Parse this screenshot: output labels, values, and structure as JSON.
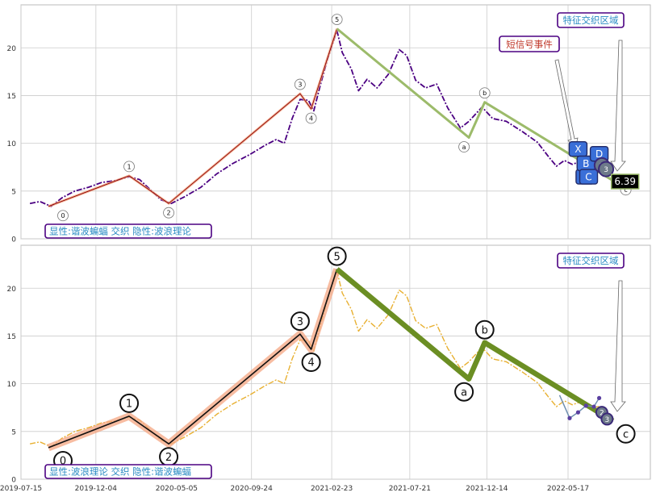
{
  "colors": {
    "price_top": "#4b0082",
    "price_bottom": "#e8b031",
    "wave_thin": "#8b0000",
    "wave_glow": "#f4a582",
    "abc_line": "#9cbb6a",
    "abc_thick": "#6b8e23",
    "label_box_border": "#4b0082",
    "label_text": "#2b8cc4",
    "event_text": "#c0392b",
    "marker_blue": "#3a6fd8",
    "grid": "#cccccc"
  },
  "chart_data": [
    {
      "type": "line",
      "panel": "top",
      "ylim": [
        0,
        24.5
      ],
      "yticks": [
        0,
        5,
        10,
        15,
        20
      ],
      "grid": true,
      "series": [
        {
          "key": "price",
          "style": "dash-dot",
          "points": [
            [
              "2019-08-01",
              3.7
            ],
            [
              "2019-08-20",
              3.9
            ],
            [
              "2019-09-10",
              3.4
            ],
            [
              "2019-10-01",
              4.3
            ],
            [
              "2019-10-25",
              5.0
            ],
            [
              "2019-11-20",
              5.4
            ],
            [
              "2019-12-15",
              5.9
            ],
            [
              "2020-01-10",
              6.1
            ],
            [
              "2020-02-05",
              6.5
            ],
            [
              "2020-02-25",
              6.2
            ],
            [
              "2020-03-15",
              5.2
            ],
            [
              "2020-04-05",
              4.1
            ],
            [
              "2020-04-25",
              3.7
            ],
            [
              "2020-05-20",
              4.4
            ],
            [
              "2020-06-20",
              5.4
            ],
            [
              "2020-07-20",
              6.8
            ],
            [
              "2020-08-20",
              7.9
            ],
            [
              "2020-09-20",
              8.8
            ],
            [
              "2020-10-20",
              9.8
            ],
            [
              "2020-11-10",
              10.4
            ],
            [
              "2020-11-25",
              10.0
            ],
            [
              "2020-12-10",
              12.6
            ],
            [
              "2020-12-25",
              14.6
            ],
            [
              "2021-01-10",
              14.5
            ],
            [
              "2021-01-20",
              13.4
            ],
            [
              "2021-02-01",
              16.0
            ],
            [
              "2021-02-15",
              18.8
            ],
            [
              "2021-03-05",
              21.8
            ],
            [
              "2021-03-15",
              19.5
            ],
            [
              "2021-04-01",
              17.8
            ],
            [
              "2021-04-15",
              15.5
            ],
            [
              "2021-05-01",
              16.7
            ],
            [
              "2021-05-20",
              15.8
            ],
            [
              "2021-06-10",
              17.2
            ],
            [
              "2021-07-01",
              19.8
            ],
            [
              "2021-07-15",
              19.2
            ],
            [
              "2021-08-01",
              16.6
            ],
            [
              "2021-08-20",
              15.8
            ],
            [
              "2021-09-10",
              16.2
            ],
            [
              "2021-10-01",
              13.7
            ],
            [
              "2021-10-25",
              11.6
            ],
            [
              "2021-11-10",
              12.3
            ],
            [
              "2021-12-05",
              13.8
            ],
            [
              "2021-12-25",
              12.6
            ],
            [
              "2022-01-20",
              12.3
            ],
            [
              "2022-02-20",
              11.2
            ],
            [
              "2022-03-20",
              10.1
            ],
            [
              "2022-04-10",
              8.6
            ],
            [
              "2022-04-25",
              7.6
            ],
            [
              "2022-05-10",
              8.2
            ],
            [
              "2022-05-25",
              7.8
            ],
            [
              "2022-06-10",
              8.1
            ],
            [
              "2022-06-25",
              7.5
            ],
            [
              "2022-07-15",
              7.6
            ]
          ]
        }
      ],
      "waves": [
        {
          "label": "0",
          "date": "2019-09-05",
          "value": 3.4,
          "label_pos": "below"
        },
        {
          "label": "1",
          "date": "2020-02-05",
          "value": 6.6,
          "label_pos": "above"
        },
        {
          "label": "2",
          "date": "2020-04-20",
          "value": 3.7,
          "label_pos": "below"
        },
        {
          "label": "3",
          "date": "2020-12-25",
          "value": 15.2,
          "label_pos": "above"
        },
        {
          "label": "4",
          "date": "2021-01-15",
          "value": 13.6,
          "label_pos": "below"
        },
        {
          "label": "5",
          "date": "2021-03-05",
          "value": 22.0,
          "label_pos": "above"
        }
      ],
      "abc": [
        {
          "label": "a",
          "date": "2021-11-10",
          "value": 10.6,
          "label_pos": "below"
        },
        {
          "label": "b",
          "date": "2021-12-10",
          "value": 14.3,
          "label_pos": "above"
        },
        {
          "label": "c",
          "date": "2022-08-10",
          "value": 6.1,
          "label_pos": "below"
        }
      ],
      "xabcd": [
        {
          "label": "X",
          "date": "2022-06-05",
          "value": 9.4
        },
        {
          "label": "A",
          "date": "2022-06-18",
          "value": 6.5
        },
        {
          "label": "B",
          "date": "2022-06-20",
          "value": 7.9
        },
        {
          "label": "C",
          "date": "2022-06-25",
          "value": 6.5
        },
        {
          "label": "D",
          "date": "2022-07-15",
          "value": 8.9
        }
      ],
      "tags": [
        {
          "label": "2",
          "date": "2022-07-20",
          "value": 7.7
        },
        {
          "label": "3",
          "date": "2022-07-28",
          "value": 7.3
        },
        {
          "label": "6.39",
          "date": "2022-08-01",
          "value": 6.5
        }
      ],
      "annotations": {
        "region": "特征交织区域",
        "event": "短信号事件",
        "note": "显性:谐波蝙蝠 交织 隐性:波浪理论"
      }
    },
    {
      "type": "line",
      "panel": "bottom",
      "ylim": [
        0,
        24.5
      ],
      "yticks": [
        0,
        5,
        10,
        15,
        20
      ],
      "grid": true,
      "series": [
        {
          "key": "price",
          "style": "dash-dot",
          "same_as": "top"
        }
      ],
      "waves": [
        {
          "label": "0",
          "date": "2019-09-05",
          "value": 3.3,
          "label_pos": "below"
        },
        {
          "label": "1",
          "date": "2020-02-05",
          "value": 6.6,
          "label_pos": "above"
        },
        {
          "label": "2",
          "date": "2020-04-20",
          "value": 3.7,
          "label_pos": "below"
        },
        {
          "label": "3",
          "date": "2020-12-25",
          "value": 15.2,
          "label_pos": "above"
        },
        {
          "label": "4",
          "date": "2021-01-15",
          "value": 13.6,
          "label_pos": "below"
        },
        {
          "label": "5",
          "date": "2021-03-05",
          "value": 22.0,
          "label_pos": "above"
        }
      ],
      "abc": [
        {
          "label": "a",
          "date": "2021-11-10",
          "value": 10.5,
          "label_pos": "below"
        },
        {
          "label": "b",
          "date": "2021-12-10",
          "value": 14.3,
          "label_pos": "above"
        },
        {
          "label": "c",
          "date": "2022-08-10",
          "value": 6.1,
          "label_pos": "below"
        }
      ],
      "harmonic": [
        [
          "2022-05-01",
          8.8
        ],
        [
          "2022-05-20",
          6.4
        ],
        [
          "2022-06-05",
          7.0
        ],
        [
          "2022-06-20",
          7.7
        ],
        [
          "2022-07-05",
          7.6
        ],
        [
          "2022-07-15",
          8.5
        ]
      ],
      "tags": [
        {
          "label": "2",
          "date": "2022-07-20",
          "value": 7.0
        },
        {
          "label": "3",
          "date": "2022-07-30",
          "value": 6.3
        }
      ],
      "annotations": {
        "region": "特征交织区域",
        "note": "显性:波浪理论 交织 隐性:谐波蝙蝠"
      }
    }
  ],
  "x_axis": {
    "range": [
      "2019-07-15",
      "2022-10-20"
    ],
    "ticks": [
      "2019-07-15",
      "2019-12-04",
      "2020-05-05",
      "2020-09-24",
      "2021-02-23",
      "2021-07-21",
      "2021-12-14",
      "2022-05-17"
    ]
  }
}
